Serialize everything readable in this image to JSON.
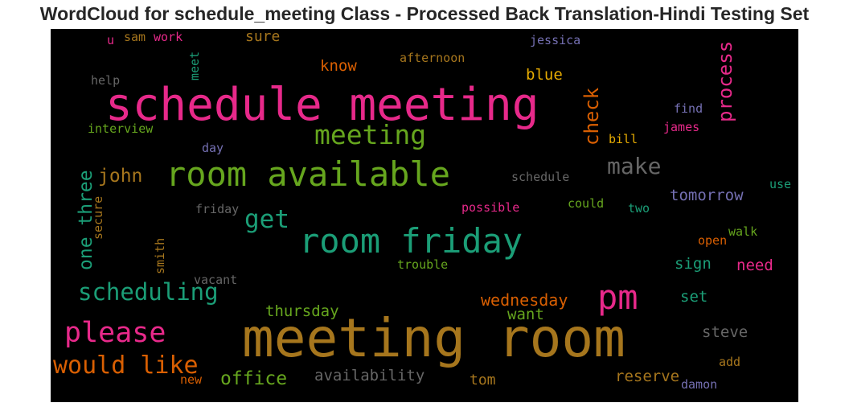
{
  "title": "WordCloud for schedule_meeting Class - Processed Back Translation-Hindi Testing Set",
  "chart_data": {
    "type": "wordcloud",
    "background": "#000000",
    "words": [
      {
        "text": "schedule meeting",
        "color": "#e7298a"
      },
      {
        "text": "meeting room",
        "color": "#a6761d"
      },
      {
        "text": "room available",
        "color": "#66a61e"
      },
      {
        "text": "room friday",
        "color": "#1b9e77"
      },
      {
        "text": "pm",
        "color": "#e7298a"
      },
      {
        "text": "meeting",
        "color": "#66a61e"
      },
      {
        "text": "please",
        "color": "#e7298a"
      },
      {
        "text": "would like",
        "color": "#d95f02"
      },
      {
        "text": "scheduling",
        "color": "#1b9e77"
      },
      {
        "text": "make",
        "color": "#666666"
      },
      {
        "text": "get",
        "color": "#1b9e77"
      },
      {
        "text": "one three",
        "color": "#1b9e77"
      },
      {
        "text": "process",
        "color": "#e7298a"
      },
      {
        "text": "check",
        "color": "#d95f02"
      },
      {
        "text": "office",
        "color": "#66a61e"
      },
      {
        "text": "john",
        "color": "#a6761d"
      },
      {
        "text": "wednesday",
        "color": "#d95f02"
      },
      {
        "text": "tomorrow",
        "color": "#7570b3"
      },
      {
        "text": "availability",
        "color": "#666666"
      },
      {
        "text": "thursday",
        "color": "#66a61e"
      },
      {
        "text": "reserve",
        "color": "#a6761d"
      },
      {
        "text": "steve",
        "color": "#666666"
      },
      {
        "text": "want",
        "color": "#66a61e"
      },
      {
        "text": "blue",
        "color": "#e6ab02"
      },
      {
        "text": "know",
        "color": "#d95f02"
      },
      {
        "text": "sign",
        "color": "#1b9e77"
      },
      {
        "text": "need",
        "color": "#e7298a"
      },
      {
        "text": "set",
        "color": "#1b9e77"
      },
      {
        "text": "sure",
        "color": "#a6761d"
      },
      {
        "text": "tom",
        "color": "#a6761d"
      },
      {
        "text": "afternoon",
        "color": "#a6761d"
      },
      {
        "text": "jessica",
        "color": "#7570b3"
      },
      {
        "text": "interview",
        "color": "#66a61e"
      },
      {
        "text": "help",
        "color": "#666666"
      },
      {
        "text": "find",
        "color": "#7570b3"
      },
      {
        "text": "james",
        "color": "#e7298a"
      },
      {
        "text": "bill",
        "color": "#e6ab02"
      },
      {
        "text": "schedule",
        "color": "#666666"
      },
      {
        "text": "possible",
        "color": "#e7298a"
      },
      {
        "text": "could",
        "color": "#66a61e"
      },
      {
        "text": "two",
        "color": "#1b9e77"
      },
      {
        "text": "use",
        "color": "#1b9e77"
      },
      {
        "text": "trouble",
        "color": "#66a61e"
      },
      {
        "text": "friday",
        "color": "#666666"
      },
      {
        "text": "vacant",
        "color": "#666666"
      },
      {
        "text": "walk",
        "color": "#66a61e"
      },
      {
        "text": "open",
        "color": "#d95f02"
      },
      {
        "text": "day",
        "color": "#7570b3"
      },
      {
        "text": "work",
        "color": "#e7298a"
      },
      {
        "text": "sam",
        "color": "#a6761d"
      },
      {
        "text": "u",
        "color": "#e7298a"
      },
      {
        "text": "meet",
        "color": "#1b9e77"
      },
      {
        "text": "secure",
        "color": "#a6761d"
      },
      {
        "text": "smith",
        "color": "#a6761d"
      },
      {
        "text": "new",
        "color": "#d95f02"
      },
      {
        "text": "add",
        "color": "#a6761d"
      },
      {
        "text": "damon",
        "color": "#7570b3"
      }
    ]
  }
}
